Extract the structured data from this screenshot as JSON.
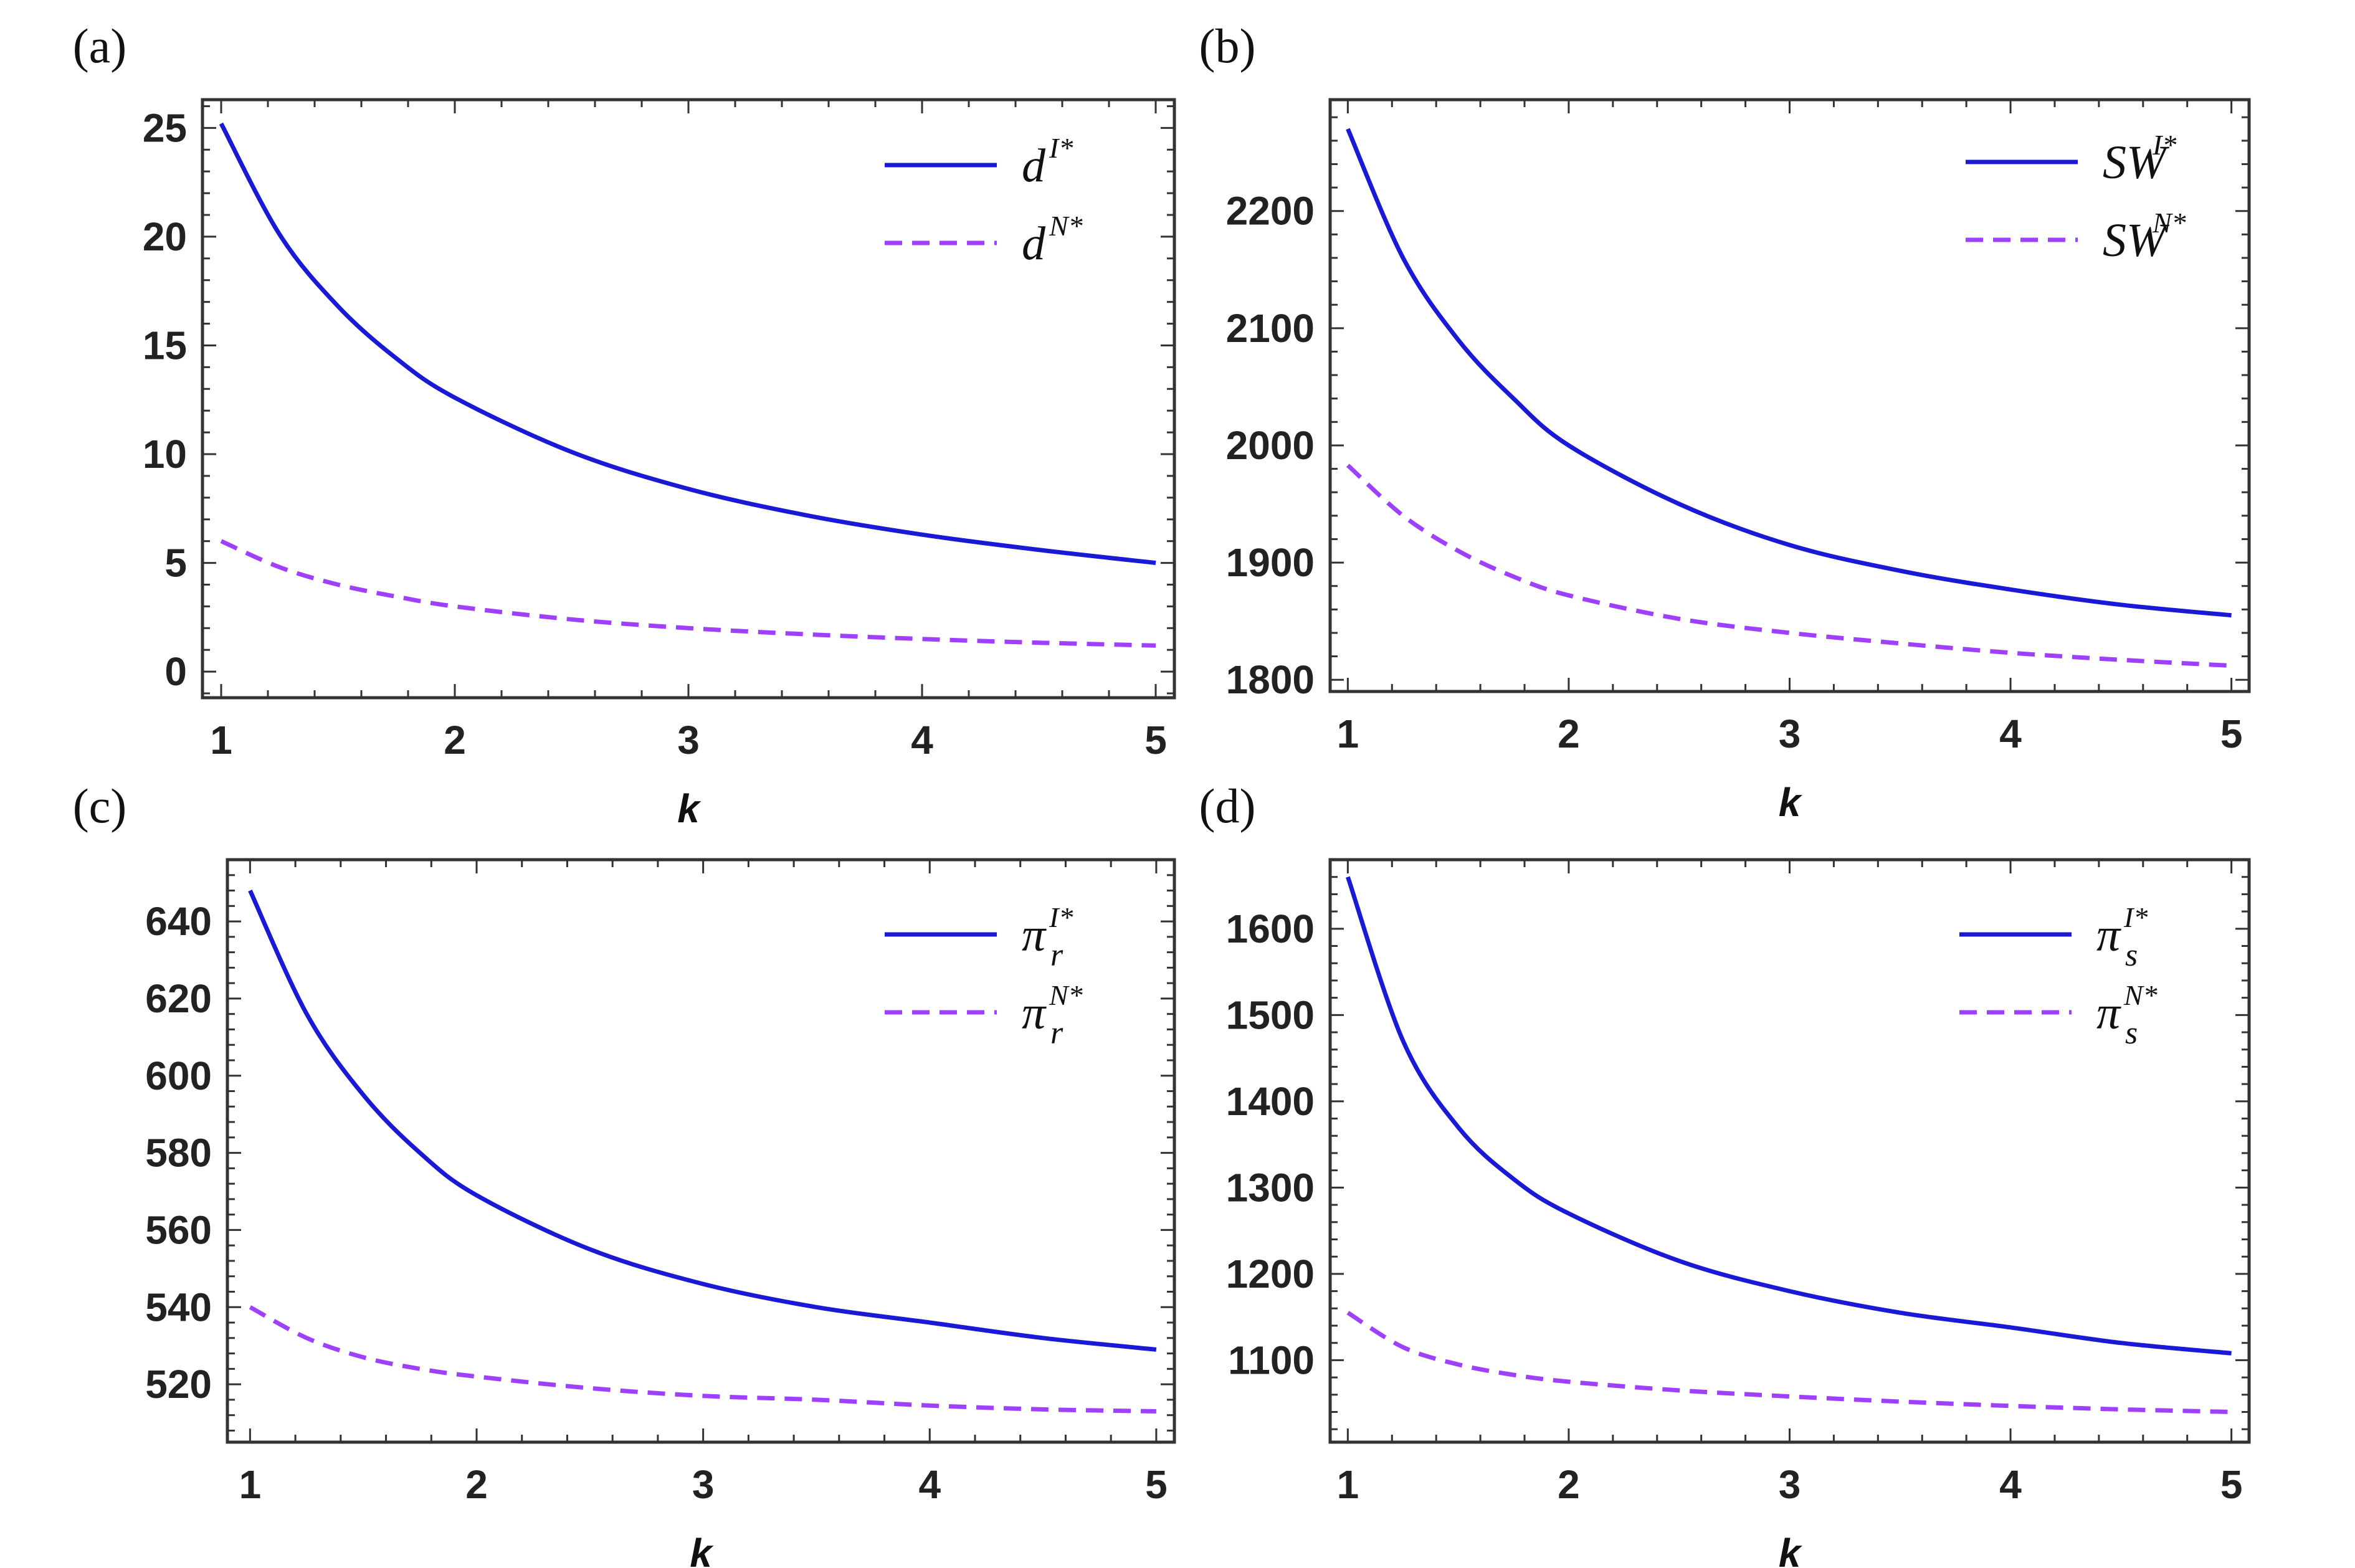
{
  "chart_data": [
    {
      "panel": "(a)",
      "type": "line",
      "xlabel": "k",
      "ylabel": "",
      "xlim": [
        0.92,
        5.08
      ],
      "ylim": [
        -1.2,
        26.3
      ],
      "xticks": [
        1,
        2,
        3,
        4,
        5
      ],
      "yticks": [
        0,
        5,
        10,
        15,
        20,
        25
      ],
      "xtick_labels": [
        "1",
        "2",
        "3",
        "4",
        "5"
      ],
      "ytick_labels": [
        "0",
        "5",
        "10",
        "15",
        "20",
        "25"
      ],
      "legend_position": "top-right",
      "x": [
        1,
        1.25,
        1.5,
        1.75,
        2,
        2.5,
        3,
        3.5,
        4,
        4.5,
        5
      ],
      "series": [
        {
          "name": "d",
          "sup": "I*",
          "sub": "",
          "style": "solid",
          "color": "#1a1ad6",
          "values": [
            25.2,
            20.1,
            16.8,
            14.4,
            12.6,
            10.1,
            8.4,
            7.2,
            6.3,
            5.6,
            5.0
          ]
        },
        {
          "name": "d",
          "sup": "N*",
          "sub": "",
          "style": "dashed",
          "color": "#a040ff",
          "values": [
            6.0,
            4.8,
            4.0,
            3.45,
            3.0,
            2.4,
            2.0,
            1.72,
            1.5,
            1.33,
            1.2
          ]
        }
      ]
    },
    {
      "panel": "(b)",
      "type": "line",
      "xlabel": "k",
      "ylabel": "",
      "xlim": [
        0.92,
        5.08
      ],
      "ylim": [
        1790,
        2295
      ],
      "xticks": [
        1,
        2,
        3,
        4,
        5
      ],
      "yticks": [
        1800,
        1900,
        2000,
        2100,
        2200
      ],
      "xtick_labels": [
        "1",
        "2",
        "3",
        "4",
        "5"
      ],
      "ytick_labels": [
        "1800",
        "1900",
        "2000",
        "2100",
        "2200"
      ],
      "legend_position": "top-right",
      "x": [
        1,
        1.25,
        1.5,
        1.75,
        2,
        2.5,
        3,
        3.5,
        4,
        4.5,
        5
      ],
      "series": [
        {
          "name": "SW",
          "sup": "I*",
          "sub": "",
          "style": "solid",
          "color": "#1a1ad6",
          "values": [
            2270,
            2160,
            2090,
            2040,
            2000,
            1950,
            1915,
            1893,
            1877,
            1864,
            1855
          ]
        },
        {
          "name": "SW",
          "sup": "N*",
          "sub": "",
          "style": "dashed",
          "color": "#a040ff",
          "values": [
            1983,
            1940,
            1910,
            1888,
            1872,
            1852,
            1840,
            1831,
            1823,
            1817,
            1812
          ]
        }
      ]
    },
    {
      "panel": "(c)",
      "type": "line",
      "xlabel": "k",
      "ylabel": "",
      "xlim": [
        0.9,
        5.08
      ],
      "ylim": [
        505,
        656
      ],
      "xticks": [
        1,
        2,
        3,
        4,
        5
      ],
      "yticks": [
        520,
        540,
        560,
        580,
        600,
        620,
        640
      ],
      "xtick_labels": [
        "1",
        "2",
        "3",
        "4",
        "5"
      ],
      "ytick_labels": [
        "520",
        "540",
        "560",
        "580",
        "600",
        "620",
        "640"
      ],
      "legend_position": "top-right",
      "x": [
        1,
        1.25,
        1.5,
        1.75,
        2,
        2.5,
        3,
        3.5,
        4,
        4.5,
        5
      ],
      "series": [
        {
          "name": "π",
          "sup": "I*",
          "sub": "r",
          "style": "solid",
          "color": "#1a1ad6",
          "values": [
            648,
            616,
            595,
            580,
            569,
            555,
            546,
            540,
            536,
            532,
            529
          ]
        },
        {
          "name": "π",
          "sup": "N*",
          "sub": "r",
          "style": "dashed",
          "color": "#a040ff",
          "values": [
            540,
            532,
            527,
            524,
            522,
            519,
            517,
            516,
            514.5,
            513.5,
            513
          ]
        }
      ]
    },
    {
      "panel": "(d)",
      "type": "line",
      "xlabel": "k",
      "ylabel": "",
      "xlim": [
        0.92,
        5.08
      ],
      "ylim": [
        1005,
        1680
      ],
      "xticks": [
        1,
        2,
        3,
        4,
        5
      ],
      "yticks": [
        1100,
        1200,
        1300,
        1400,
        1500,
        1600
      ],
      "xtick_labels": [
        "1",
        "2",
        "3",
        "4",
        "5"
      ],
      "ytick_labels": [
        "1100",
        "1200",
        "1300",
        "1400",
        "1500",
        "1600"
      ],
      "legend_position": "top-right",
      "x": [
        1,
        1.25,
        1.5,
        1.75,
        2,
        2.5,
        3,
        3.5,
        4,
        4.5,
        5
      ],
      "series": [
        {
          "name": "π",
          "sup": "I*",
          "sub": "s",
          "style": "solid",
          "color": "#1a1ad6",
          "values": [
            1660,
            1470,
            1370,
            1310,
            1270,
            1215,
            1180,
            1155,
            1138,
            1120,
            1108
          ]
        },
        {
          "name": "π",
          "sup": "N*",
          "sub": "s",
          "style": "dashed",
          "color": "#a040ff",
          "values": [
            1155,
            1115,
            1095,
            1083,
            1075,
            1065,
            1058,
            1052,
            1047,
            1043,
            1040
          ]
        }
      ]
    }
  ]
}
